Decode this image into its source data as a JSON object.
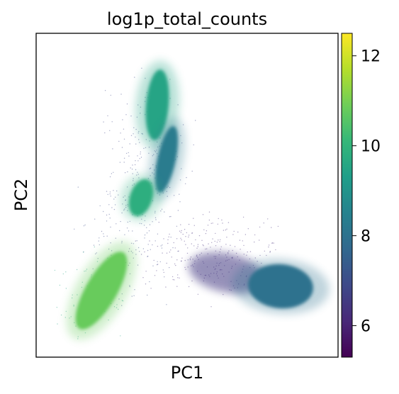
{
  "chart_data": {
    "type": "scatter",
    "title": "log1p_total_counts",
    "xlabel": "PC1",
    "ylabel": "PC2",
    "x_ticks_shown": false,
    "y_ticks_shown": false,
    "grid": false,
    "colormap": "viridis",
    "colormap_stops": [
      "#440154",
      "#482878",
      "#3e4989",
      "#31688e",
      "#26828e",
      "#1f9e89",
      "#35b779",
      "#6ece58",
      "#b5de2b",
      "#fde725"
    ],
    "colorbar": {
      "min": 5.3,
      "max": 12.5,
      "ticks": [
        6,
        8,
        10,
        12
      ],
      "tick_labels": [
        "6",
        "8",
        "10",
        "12"
      ],
      "position": "right"
    },
    "clusters": [
      {
        "cluster": "upper vertical arm, top",
        "value": 9.5
      },
      {
        "cluster": "upper vertical arm, middle",
        "value": 8.3
      },
      {
        "cluster": "upper vertical arm, small blob",
        "value": 9.8
      },
      {
        "cluster": "lower-left arm",
        "value": 10.8
      },
      {
        "cluster": "right arm, main",
        "value": 8.0
      },
      {
        "cluster": "right arm, sparse tail",
        "value": 6.5
      }
    ]
  }
}
